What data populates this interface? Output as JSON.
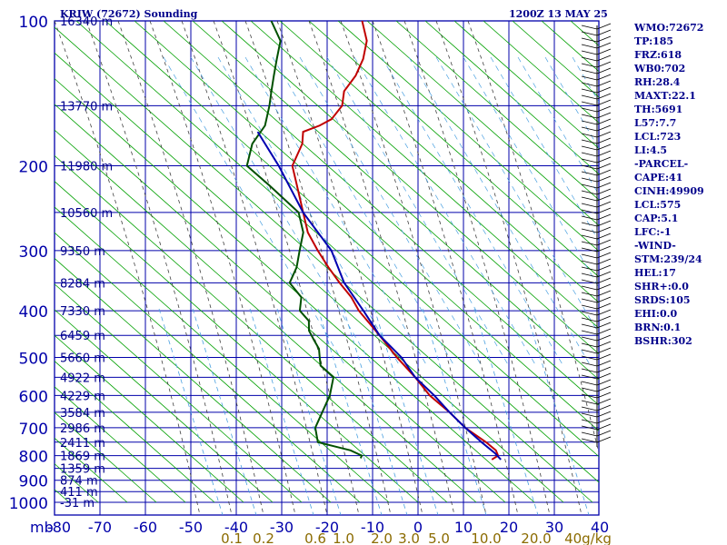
{
  "header": {
    "station": "KRIW (72672) Sounding",
    "time": "1200Z 13 MAY 25"
  },
  "stats": [
    "WMO:72672",
    "TP:185",
    "FRZ:618",
    "WB0:702",
    "RH:28.4",
    "MAXT:22.1",
    "TH:5691",
    "L57:7.7",
    "LCL:723",
    "LI:4.5",
    "-PARCEL-",
    "CAPE:41",
    "CINH:49909",
    "LCL:575",
    "CAP:5.1",
    "LFC:-1",
    "-WIND-",
    "STM:239/24",
    "HEL:17",
    "SHR+:0.0",
    "SRDS:105",
    "EHI:0.0",
    "BRN:0.1",
    "BSHR:302"
  ],
  "colors": {
    "temperature": "#c00000",
    "dewpoint": "#005000",
    "parcel": "#0000b0",
    "isobar": "#0000aa",
    "isotherm": "#0000aa",
    "dry_adiabat": "#00a000",
    "moist_adiabat": "#404040",
    "mixing_ratio": "#4aa0e0",
    "labels": "#00008b",
    "mr_labels": "#8b6b00"
  },
  "chart_data": {
    "type": "skew-t",
    "title": "KRIW (72672) Sounding",
    "ylabel": "mb",
    "pressure_ticks": [
      100,
      200,
      300,
      400,
      500,
      600,
      700,
      800,
      900,
      1000
    ],
    "temperature_ticks": [
      -80,
      -70,
      -60,
      -50,
      -40,
      -30,
      -20,
      -10,
      0,
      10,
      20,
      30,
      40
    ],
    "height_labels": [
      {
        "p": 100,
        "label": "16340 m"
      },
      {
        "p": 150,
        "label": "13770 m"
      },
      {
        "p": 200,
        "label": "11980 m"
      },
      {
        "p": 250,
        "label": "10560 m"
      },
      {
        "p": 300,
        "label": "9350 m"
      },
      {
        "p": 350,
        "label": "8284 m"
      },
      {
        "p": 400,
        "label": "7330 m"
      },
      {
        "p": 450,
        "label": "6459 m"
      },
      {
        "p": 500,
        "label": "5660 m"
      },
      {
        "p": 550,
        "label": "4922 m"
      },
      {
        "p": 600,
        "label": "4229 m"
      },
      {
        "p": 650,
        "label": "3584 m"
      },
      {
        "p": 700,
        "label": "2986 m"
      },
      {
        "p": 750,
        "label": "2411 m"
      },
      {
        "p": 800,
        "label": "1869 m"
      },
      {
        "p": 850,
        "label": "1359 m"
      },
      {
        "p": 900,
        "label": "874 m"
      },
      {
        "p": 950,
        "label": "411 m"
      },
      {
        "p": 1000,
        "label": "-31 m"
      }
    ],
    "mixing_ratio_labels": [
      "0.1",
      "0.2",
      "0.6",
      "1.0",
      "2.0",
      "3.0",
      "5.0",
      "10.0",
      "20.0",
      "40g/kg"
    ],
    "mixing_ratio_values": [
      0.1,
      0.2,
      0.6,
      1.0,
      2.0,
      3.0,
      5.0,
      10.0,
      20.0,
      40.0
    ],
    "series": [
      {
        "name": "temperature",
        "points": [
          [
            100,
            -60
          ],
          [
            110,
            -57
          ],
          [
            120,
            -56
          ],
          [
            130,
            -56
          ],
          [
            140,
            -57
          ],
          [
            150,
            -56
          ],
          [
            160,
            -57
          ],
          [
            165,
            -59
          ],
          [
            170,
            -62
          ],
          [
            180,
            -61
          ],
          [
            200,
            -61
          ],
          [
            220,
            -58
          ],
          [
            250,
            -54
          ],
          [
            275,
            -51
          ],
          [
            300,
            -47
          ],
          [
            325,
            -43
          ],
          [
            350,
            -39
          ],
          [
            375,
            -35
          ],
          [
            400,
            -32
          ],
          [
            450,
            -25
          ],
          [
            500,
            -19
          ],
          [
            550,
            -13
          ],
          [
            600,
            -8
          ],
          [
            650,
            -2
          ],
          [
            700,
            3
          ],
          [
            750,
            9
          ],
          [
            780,
            12
          ],
          [
            800,
            13
          ],
          [
            815,
            12
          ]
        ]
      },
      {
        "name": "dewpoint",
        "points": [
          [
            100,
            -80
          ],
          [
            110,
            -76
          ],
          [
            120,
            -75
          ],
          [
            130,
            -74
          ],
          [
            140,
            -73
          ],
          [
            150,
            -72
          ],
          [
            165,
            -71
          ],
          [
            180,
            -72
          ],
          [
            200,
            -71
          ],
          [
            220,
            -64
          ],
          [
            250,
            -55
          ],
          [
            275,
            -52
          ],
          [
            300,
            -51
          ],
          [
            325,
            -50
          ],
          [
            350,
            -50
          ],
          [
            375,
            -46
          ],
          [
            400,
            -45
          ],
          [
            420,
            -42
          ],
          [
            440,
            -41
          ],
          [
            460,
            -39
          ],
          [
            480,
            -37
          ],
          [
            500,
            -36
          ],
          [
            520,
            -35
          ],
          [
            550,
            -31
          ],
          [
            600,
            -30
          ],
          [
            650,
            -30
          ],
          [
            700,
            -30
          ],
          [
            750,
            -28
          ],
          [
            780,
            -20
          ],
          [
            800,
            -17
          ],
          [
            810,
            -17
          ]
        ]
      },
      {
        "name": "parcel",
        "points": [
          [
            170,
            -72
          ],
          [
            200,
            -64
          ],
          [
            250,
            -54
          ],
          [
            300,
            -44
          ],
          [
            350,
            -38
          ],
          [
            400,
            -31
          ],
          [
            450,
            -25
          ],
          [
            500,
            -18
          ],
          [
            550,
            -13
          ],
          [
            600,
            -7
          ],
          [
            650,
            -2
          ],
          [
            700,
            3
          ],
          [
            750,
            8
          ],
          [
            790,
            12
          ],
          [
            815,
            14
          ]
        ]
      }
    ]
  }
}
